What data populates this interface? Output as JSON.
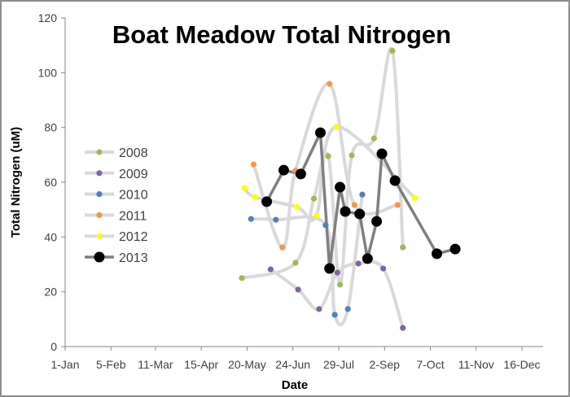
{
  "chart_data": {
    "type": "line",
    "title": "Boat Meadow Total Nitrogen",
    "xlabel": "Date",
    "ylabel": "Total Nitrogen (uM)",
    "x_units": "day of year (0 = 1-Jan)",
    "xlim": [
      0,
      349
    ],
    "ylim": [
      0,
      120
    ],
    "yticks": [
      0,
      20,
      40,
      60,
      80,
      100,
      120
    ],
    "xticks": [
      {
        "value": 0,
        "label": "1-Jan"
      },
      {
        "value": 35,
        "label": "5-Feb"
      },
      {
        "value": 69,
        "label": "11-Mar"
      },
      {
        "value": 104,
        "label": "15-Apr"
      },
      {
        "value": 139,
        "label": "20-May"
      },
      {
        "value": 174,
        "label": "24-Jun"
      },
      {
        "value": 209,
        "label": "29-Jul"
      },
      {
        "value": 244,
        "label": "2-Sep"
      },
      {
        "value": 279,
        "label": "7-Oct"
      },
      {
        "value": 314,
        "label": "11-Nov"
      },
      {
        "value": 349,
        "label": "16-Dec"
      }
    ],
    "grid": false,
    "legend_position": "left",
    "series": [
      {
        "name": "2008",
        "color": "#9bbb59",
        "line_color": "#d9d9d9",
        "smooth": true,
        "x": [
          135,
          176,
          190,
          201,
          210,
          219,
          236,
          250,
          258
        ],
        "y": [
          25,
          30.6,
          54,
          69.5,
          22.6,
          69.8,
          76,
          108,
          36.2
        ]
      },
      {
        "name": "2009",
        "color": "#8064a2",
        "line_color": "#d9d9d9",
        "smooth": true,
        "x": [
          157,
          178,
          194,
          208,
          224,
          243,
          258
        ],
        "y": [
          28.2,
          20.8,
          13.7,
          27,
          30.3,
          28.5,
          6.8
        ]
      },
      {
        "name": "2010",
        "color": "#4f81bd",
        "line_color": "#d9d9d9",
        "smooth": true,
        "x": [
          142,
          161,
          199,
          206,
          216,
          227
        ],
        "y": [
          46.6,
          46.3,
          44.3,
          11.6,
          13.7,
          55.5
        ]
      },
      {
        "name": "2011",
        "color": "#f79646",
        "line_color": "#d9d9d9",
        "smooth": true,
        "x": [
          144,
          166,
          176,
          202,
          221,
          254
        ],
        "y": [
          66.5,
          36.2,
          64.2,
          95.9,
          51.7,
          51.7
        ]
      },
      {
        "name": "2012",
        "color": "#ffff00",
        "line_color": "#d9d9d9",
        "smooth": true,
        "x": [
          137,
          145,
          177,
          192,
          207,
          267
        ],
        "y": [
          57.9,
          54.6,
          51,
          47.8,
          80.2,
          54.3
        ]
      },
      {
        "name": "2013",
        "color": "#000000",
        "line_color": "#7f7f7f",
        "smooth": false,
        "x": [
          154,
          167,
          180,
          195,
          202,
          210,
          214,
          225,
          231,
          238,
          242,
          252,
          284,
          298
        ],
        "y": [
          52.9,
          64.4,
          63,
          78.1,
          28.5,
          58.2,
          49.3,
          48.4,
          32.1,
          45.7,
          70.4,
          60.6,
          33.9,
          35.6
        ]
      }
    ]
  }
}
